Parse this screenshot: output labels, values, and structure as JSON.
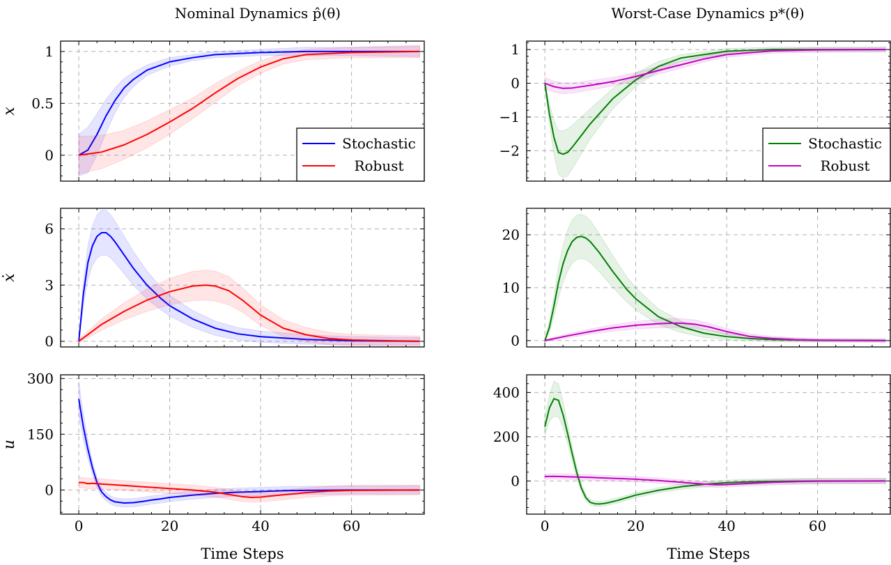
{
  "titles": {
    "left_title": "Nominal Dynamics p̂(θ)",
    "right_title": "Worst-Case Dynamics p*(θ)"
  },
  "chart_data": [
    {
      "type": "line",
      "title": "Nominal Dynamics p̂(θ)",
      "ylabel": "x",
      "xlabel": "",
      "xlim": [
        -4,
        76
      ],
      "ylim": [
        -0.25,
        1.1
      ],
      "yticks": [
        0,
        0.5,
        1
      ],
      "ytick_labels": [
        "0",
        "0.5",
        "1"
      ],
      "xticks": [
        0,
        20,
        40,
        60
      ],
      "xtick_labels": [],
      "grid": true,
      "legend": "bottom-right",
      "series": [
        {
          "name": "Stochastic",
          "color": "#0000ff",
          "x": [
            0,
            2,
            4,
            6,
            8,
            10,
            12,
            15,
            20,
            25,
            30,
            40,
            50,
            60,
            75
          ],
          "y": [
            0,
            0.05,
            0.2,
            0.38,
            0.53,
            0.65,
            0.73,
            0.82,
            0.9,
            0.94,
            0.97,
            0.99,
            1.0,
            1.0,
            1.0
          ],
          "band": [
            0.2,
            0.22,
            0.2,
            0.16,
            0.12,
            0.09,
            0.07,
            0.05,
            0.04,
            0.03,
            0.03,
            0.03,
            0.04,
            0.04,
            0.05
          ]
        },
        {
          "name": "Robust",
          "color": "#ff0000",
          "x": [
            0,
            5,
            10,
            15,
            20,
            25,
            30,
            35,
            40,
            45,
            50,
            60,
            75
          ],
          "y": [
            0,
            0.03,
            0.1,
            0.2,
            0.32,
            0.45,
            0.6,
            0.74,
            0.85,
            0.93,
            0.97,
            0.99,
            1.0
          ],
          "band": [
            0.18,
            0.16,
            0.14,
            0.13,
            0.12,
            0.1,
            0.09,
            0.07,
            0.06,
            0.05,
            0.05,
            0.05,
            0.06
          ]
        }
      ]
    },
    {
      "type": "line",
      "title": "Worst-Case Dynamics p*(θ)",
      "ylabel": "",
      "xlabel": "",
      "xlim": [
        -4,
        76
      ],
      "ylim": [
        -2.9,
        1.25
      ],
      "yticks": [
        -2,
        -1,
        0,
        1
      ],
      "ytick_labels": [
        "−2",
        "−1",
        "0",
        "1"
      ],
      "xticks": [
        0,
        20,
        40,
        60
      ],
      "xtick_labels": [],
      "grid": true,
      "legend": "bottom-right",
      "series": [
        {
          "name": "Stochastic",
          "color": "#008000",
          "x": [
            0,
            1,
            2,
            3,
            4,
            5,
            6,
            8,
            10,
            15,
            20,
            25,
            30,
            40,
            50,
            60,
            75
          ],
          "y": [
            0,
            -0.9,
            -1.6,
            -2.05,
            -2.1,
            -2.05,
            -1.9,
            -1.55,
            -1.2,
            -0.45,
            0.1,
            0.5,
            0.75,
            0.95,
            1.0,
            1.0,
            1.0
          ],
          "band": [
            0.1,
            0.3,
            0.5,
            0.65,
            0.7,
            0.7,
            0.65,
            0.55,
            0.45,
            0.3,
            0.2,
            0.15,
            0.1,
            0.08,
            0.07,
            0.07,
            0.07
          ]
        },
        {
          "name": "Robust",
          "color": "#c000c0",
          "x": [
            0,
            2,
            4,
            6,
            10,
            15,
            20,
            25,
            30,
            35,
            40,
            50,
            60,
            75
          ],
          "y": [
            0,
            -0.1,
            -0.15,
            -0.14,
            -0.06,
            0.05,
            0.2,
            0.38,
            0.55,
            0.72,
            0.85,
            0.96,
            0.99,
            1.0
          ],
          "band": [
            0.18,
            0.16,
            0.16,
            0.15,
            0.14,
            0.13,
            0.12,
            0.11,
            0.1,
            0.09,
            0.08,
            0.07,
            0.07,
            0.07
          ]
        }
      ]
    },
    {
      "type": "line",
      "ylabel": "ẋ",
      "xlabel": "",
      "xlim": [
        -4,
        76
      ],
      "ylim": [
        -0.3,
        7.1
      ],
      "yticks": [
        0,
        3,
        6
      ],
      "ytick_labels": [
        "0",
        "3",
        "6"
      ],
      "xticks": [
        0,
        20,
        40,
        60
      ],
      "xtick_labels": [],
      "grid": true,
      "series": [
        {
          "name": "Stochastic",
          "color": "#0000ff",
          "x": [
            0,
            1,
            2,
            3,
            4,
            5,
            6,
            7,
            8,
            10,
            12,
            15,
            18,
            20,
            25,
            30,
            35,
            40,
            50,
            60,
            75
          ],
          "y": [
            0,
            2.5,
            4.2,
            5.1,
            5.6,
            5.8,
            5.8,
            5.6,
            5.3,
            4.6,
            3.9,
            3.0,
            2.3,
            1.9,
            1.2,
            0.7,
            0.4,
            0.25,
            0.1,
            0.03,
            0.0
          ],
          "band": [
            0.1,
            0.6,
            0.9,
            1.05,
            1.15,
            1.2,
            1.2,
            1.15,
            1.1,
            1.0,
            0.9,
            0.75,
            0.6,
            0.55,
            0.45,
            0.38,
            0.33,
            0.3,
            0.25,
            0.22,
            0.2
          ]
        },
        {
          "name": "Robust",
          "color": "#ff0000",
          "x": [
            0,
            5,
            10,
            15,
            20,
            25,
            28,
            30,
            33,
            36,
            40,
            45,
            50,
            55,
            60,
            75
          ],
          "y": [
            0,
            0.9,
            1.6,
            2.2,
            2.65,
            2.95,
            3.0,
            2.95,
            2.7,
            2.2,
            1.4,
            0.7,
            0.35,
            0.15,
            0.07,
            0.0
          ],
          "band": [
            0.1,
            0.3,
            0.45,
            0.6,
            0.7,
            0.78,
            0.8,
            0.8,
            0.75,
            0.65,
            0.55,
            0.45,
            0.38,
            0.33,
            0.3,
            0.28
          ]
        }
      ]
    },
    {
      "type": "line",
      "ylabel": "",
      "xlabel": "",
      "xlim": [
        -4,
        76
      ],
      "ylim": [
        -1.2,
        25
      ],
      "yticks": [
        0,
        10,
        20
      ],
      "ytick_labels": [
        "0",
        "10",
        "20"
      ],
      "xticks": [
        0,
        20,
        40,
        60
      ],
      "xtick_labels": [],
      "grid": true,
      "series": [
        {
          "name": "Stochastic",
          "color": "#008000",
          "x": [
            0,
            1,
            2,
            3,
            4,
            5,
            6,
            7,
            8,
            9,
            10,
            12,
            15,
            18,
            20,
            25,
            30,
            35,
            40,
            45,
            50,
            60,
            75
          ],
          "y": [
            0,
            2.5,
            6.5,
            11,
            14.5,
            17,
            18.7,
            19.5,
            19.7,
            19.4,
            18.7,
            16.6,
            13,
            9.7,
            7.9,
            4.5,
            2.6,
            1.4,
            0.75,
            0.4,
            0.2,
            0.05,
            0.0
          ],
          "band": [
            0.3,
            1.0,
            2.0,
            3.0,
            3.5,
            3.9,
            4.1,
            4.2,
            4.2,
            4.1,
            4.0,
            3.6,
            3.0,
            2.4,
            2.1,
            1.5,
            1.1,
            0.8,
            0.6,
            0.45,
            0.4,
            0.3,
            0.3
          ]
        },
        {
          "name": "Robust",
          "color": "#c000c0",
          "x": [
            0,
            5,
            10,
            15,
            20,
            25,
            28,
            30,
            33,
            36,
            40,
            45,
            50,
            55,
            60,
            75
          ],
          "y": [
            0,
            0.9,
            1.7,
            2.4,
            2.9,
            3.2,
            3.3,
            3.3,
            3.1,
            2.6,
            1.7,
            0.8,
            0.4,
            0.18,
            0.08,
            0.0
          ],
          "band": [
            0.2,
            0.4,
            0.5,
            0.6,
            0.7,
            0.8,
            0.85,
            0.85,
            0.8,
            0.7,
            0.6,
            0.5,
            0.4,
            0.35,
            0.3,
            0.3
          ]
        }
      ]
    },
    {
      "type": "line",
      "ylabel": "u",
      "xlabel": "Time Steps",
      "xlim": [
        -4,
        76
      ],
      "ylim": [
        -65,
        310
      ],
      "yticks": [
        0,
        150,
        300
      ],
      "ytick_labels": [
        "0",
        "150",
        "300"
      ],
      "xticks": [
        0,
        20,
        40,
        60
      ],
      "xtick_labels": [
        "0",
        "20",
        "40",
        "60"
      ],
      "grid": true,
      "series": [
        {
          "name": "Stochastic",
          "color": "#0000ff",
          "x": [
            0,
            1,
            2,
            3,
            4,
            5,
            6,
            7,
            8,
            10,
            12,
            14,
            16,
            18,
            20,
            25,
            30,
            35,
            40,
            45,
            50,
            60,
            75
          ],
          "y": [
            245,
            170,
            110,
            60,
            20,
            -5,
            -18,
            -27,
            -32,
            -35,
            -34,
            -31,
            -27,
            -24,
            -20,
            -14,
            -9,
            -6,
            -4,
            -2,
            -1,
            0,
            0
          ],
          "band": [
            45,
            35,
            25,
            18,
            14,
            12,
            11,
            11,
            11,
            11,
            11,
            11,
            11,
            11,
            11,
            11,
            11,
            11,
            11,
            11,
            11,
            11,
            11
          ]
        },
        {
          "name": "Robust",
          "color": "#ff0000",
          "x": [
            0,
            1,
            2,
            3,
            5,
            10,
            15,
            20,
            25,
            30,
            33,
            36,
            38,
            40,
            45,
            50,
            55,
            60,
            75
          ],
          "y": [
            20,
            20,
            17,
            18,
            16,
            12,
            8,
            4,
            0,
            -6,
            -12,
            -18,
            -20,
            -19,
            -13,
            -7,
            -3,
            -1,
            0
          ],
          "band": [
            14,
            14,
            14,
            14,
            14,
            13,
            13,
            13,
            13,
            13,
            13,
            13,
            13,
            13,
            13,
            13,
            13,
            13,
            13
          ]
        }
      ]
    },
    {
      "type": "line",
      "ylabel": "",
      "xlabel": "Time Steps",
      "xlim": [
        -4,
        76
      ],
      "ylim": [
        -150,
        480
      ],
      "yticks": [
        0,
        200,
        400
      ],
      "ytick_labels": [
        "0",
        "200",
        "400"
      ],
      "xticks": [
        0,
        20,
        40,
        60
      ],
      "xtick_labels": [
        "0",
        "20",
        "40",
        "60"
      ],
      "grid": true,
      "series": [
        {
          "name": "Stochastic",
          "color": "#008000",
          "x": [
            0,
            1,
            2,
            3,
            4,
            5,
            6,
            7,
            8,
            9,
            10,
            11,
            12,
            13,
            14,
            16,
            18,
            20,
            25,
            30,
            35,
            40,
            45,
            50,
            60,
            75
          ],
          "y": [
            245,
            330,
            372,
            365,
            300,
            215,
            125,
            40,
            -30,
            -75,
            -97,
            -103,
            -104,
            -102,
            -98,
            -88,
            -76,
            -64,
            -42,
            -26,
            -15,
            -8,
            -4,
            -2,
            0,
            0
          ],
          "band": [
            40,
            60,
            80,
            75,
            60,
            45,
            35,
            25,
            18,
            14,
            12,
            12,
            12,
            12,
            12,
            12,
            12,
            12,
            12,
            12,
            12,
            12,
            12,
            12,
            12,
            12
          ]
        },
        {
          "name": "Robust",
          "color": "#c000c0",
          "x": [
            0,
            2,
            5,
            10,
            15,
            20,
            25,
            30,
            35,
            38,
            40,
            45,
            50,
            55,
            60,
            75
          ],
          "y": [
            20,
            21,
            19,
            16,
            12,
            8,
            2,
            -6,
            -14,
            -17,
            -16,
            -11,
            -6,
            -3,
            -1,
            0
          ],
          "band": [
            12,
            12,
            12,
            12,
            12,
            12,
            12,
            12,
            12,
            12,
            12,
            12,
            12,
            12,
            12,
            12
          ]
        }
      ]
    }
  ]
}
